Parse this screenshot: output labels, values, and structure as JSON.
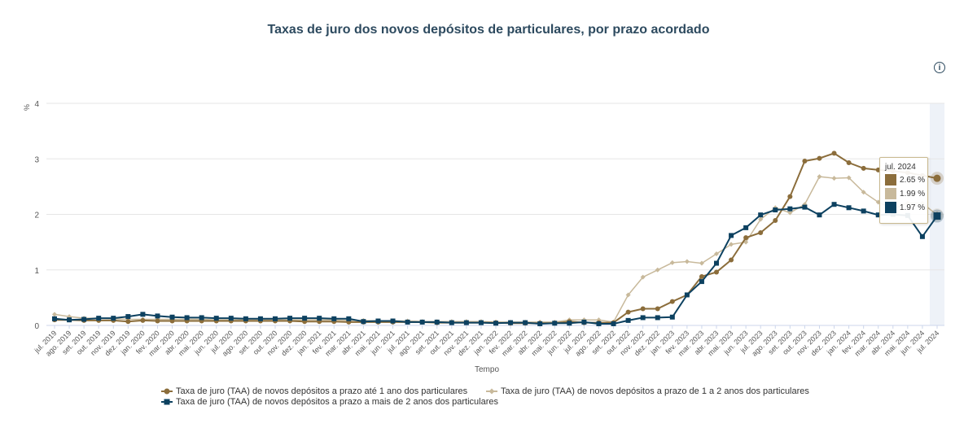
{
  "chart_data": {
    "type": "line",
    "title": "Taxas de juro dos novos depósitos de particulares, por prazo acordado",
    "xlabel": "Tempo",
    "ylabel": "%",
    "ylim": [
      0,
      4
    ],
    "yticks": [
      "0",
      "1",
      "2",
      "3",
      "4"
    ],
    "grid": true,
    "legend_position": "bottom",
    "categories": [
      "jul. 2019",
      "ago. 2019",
      "set. 2019",
      "out. 2019",
      "nov. 2019",
      "dez. 2019",
      "jan. 2020",
      "fev. 2020",
      "mar. 2020",
      "abr. 2020",
      "mai. 2020",
      "jun. 2020",
      "jul. 2020",
      "ago. 2020",
      "set. 2020",
      "out. 2020",
      "nov. 2020",
      "dez. 2020",
      "jan. 2021",
      "fev. 2021",
      "mar. 2021",
      "abr. 2021",
      "mai. 2021",
      "jun. 2021",
      "jul. 2021",
      "ago. 2021",
      "set. 2021",
      "out. 2021",
      "nov. 2021",
      "dez. 2021",
      "jan. 2022",
      "fev. 2022",
      "mar. 2022",
      "abr. 2022",
      "mai. 2022",
      "jun. 2022",
      "jul. 2022",
      "ago. 2022",
      "set. 2022",
      "out. 2022",
      "nov. 2022",
      "dez. 2022",
      "jan. 2023",
      "fev. 2023",
      "mar. 2023",
      "abr. 2023",
      "mai. 2023",
      "jun. 2023",
      "jul. 2023",
      "ago. 2023",
      "set. 2023",
      "out. 2023",
      "nov. 2023",
      "dez. 2023",
      "jan. 2024",
      "fev. 2024",
      "mar. 2024",
      "abr. 2024",
      "mai. 2024",
      "jun. 2024",
      "jul. 2024"
    ],
    "series": [
      {
        "name": "Taxa de juro (TAA) de novos depósitos a prazo até 1 ano dos particulares",
        "color": "#8b6d3b",
        "marker": "circle",
        "values": [
          0.1,
          0.1,
          0.09,
          0.09,
          0.09,
          0.07,
          0.09,
          0.08,
          0.08,
          0.08,
          0.08,
          0.08,
          0.08,
          0.08,
          0.08,
          0.08,
          0.08,
          0.07,
          0.07,
          0.07,
          0.06,
          0.06,
          0.06,
          0.06,
          0.06,
          0.06,
          0.05,
          0.05,
          0.05,
          0.05,
          0.05,
          0.04,
          0.04,
          0.04,
          0.04,
          0.07,
          0.05,
          0.05,
          0.05,
          0.24,
          0.3,
          0.3,
          0.43,
          0.55,
          0.88,
          0.96,
          1.18,
          1.58,
          1.67,
          1.89,
          2.32,
          2.96,
          3.01,
          3.1,
          2.93,
          2.83,
          2.8,
          2.78,
          2.75,
          2.7,
          2.65
        ]
      },
      {
        "name": "Taxa de juro (TAA) de novos depósitos a prazo de 1 a 2 anos dos particulares",
        "color": "#c8b99b",
        "marker": "diamond",
        "values": [
          0.2,
          0.16,
          0.13,
          0.13,
          0.12,
          0.11,
          0.11,
          0.11,
          0.11,
          0.11,
          0.11,
          0.1,
          0.1,
          0.1,
          0.1,
          0.1,
          0.1,
          0.1,
          0.1,
          0.1,
          0.09,
          0.09,
          0.08,
          0.08,
          0.08,
          0.07,
          0.07,
          0.07,
          0.07,
          0.07,
          0.06,
          0.06,
          0.06,
          0.06,
          0.06,
          0.1,
          0.1,
          0.1,
          0.06,
          0.55,
          0.87,
          1.0,
          1.13,
          1.15,
          1.12,
          1.29,
          1.46,
          1.5,
          1.91,
          2.12,
          2.03,
          2.18,
          2.68,
          2.65,
          2.66,
          2.4,
          2.22,
          2.1,
          2.2,
          2.2,
          1.99
        ]
      },
      {
        "name": "Taxa de juro (TAA) de novos depósitos a prazo a mais de 2 anos dos particulares",
        "color": "#0d4160",
        "marker": "square",
        "values": [
          0.12,
          0.1,
          0.11,
          0.13,
          0.13,
          0.16,
          0.2,
          0.17,
          0.15,
          0.14,
          0.14,
          0.13,
          0.13,
          0.12,
          0.12,
          0.12,
          0.13,
          0.13,
          0.13,
          0.12,
          0.12,
          0.07,
          0.08,
          0.08,
          0.06,
          0.06,
          0.06,
          0.05,
          0.05,
          0.05,
          0.04,
          0.05,
          0.05,
          0.03,
          0.04,
          0.04,
          0.06,
          0.03,
          0.03,
          0.09,
          0.14,
          0.14,
          0.15,
          0.55,
          0.79,
          1.12,
          1.62,
          1.76,
          1.99,
          2.08,
          2.1,
          2.13,
          1.99,
          2.18,
          2.12,
          2.06,
          1.99,
          2.0,
          1.98,
          1.6,
          1.97
        ]
      }
    ],
    "tooltip": {
      "header": "jul. 2024",
      "values": [
        "2.65 %",
        "1.99 %",
        "1.97 %"
      ]
    }
  },
  "info_icon": "info-circle-icon",
  "info_glyph": "i"
}
